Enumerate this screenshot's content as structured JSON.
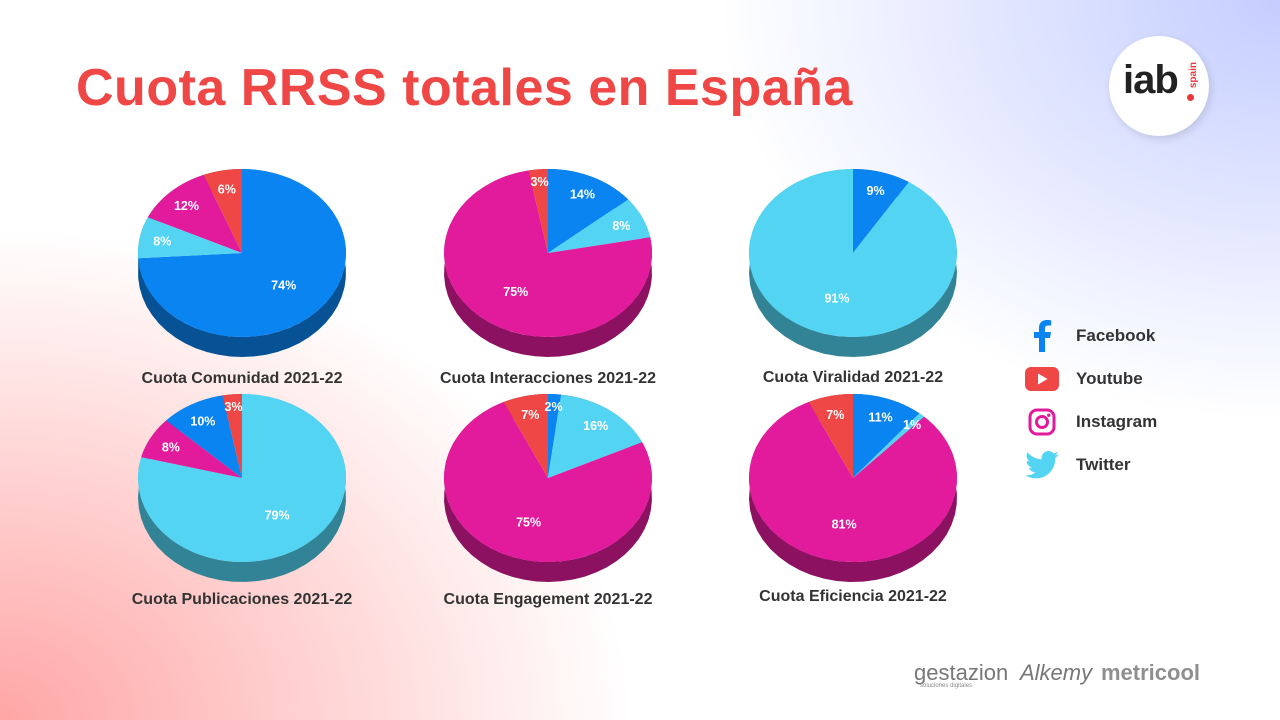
{
  "title": "Cuota RRSS totales en España",
  "logo": {
    "text": "iab",
    "sub": "spain"
  },
  "colors": {
    "facebook": "#0a84f0",
    "youtube": "#ef4646",
    "instagram": "#e11b9c",
    "twitter": "#53d4f2"
  },
  "legend": [
    {
      "name": "Facebook",
      "icon": "facebook-icon",
      "key": "facebook"
    },
    {
      "name": "Youtube",
      "icon": "youtube-icon",
      "key": "youtube"
    },
    {
      "name": "Instagram",
      "icon": "instagram-icon",
      "key": "instagram"
    },
    {
      "name": "Twitter",
      "icon": "twitter-icon",
      "key": "twitter"
    }
  ],
  "chart_data": [
    {
      "type": "pie",
      "title": "Cuota Comunidad 2021-22",
      "slices": [
        {
          "series": "facebook",
          "value": 74
        },
        {
          "series": "twitter",
          "value": 8
        },
        {
          "series": "instagram",
          "value": 12
        },
        {
          "series": "youtube",
          "value": 6
        }
      ],
      "labels": [
        "74%",
        "8%",
        "12%",
        "6%"
      ]
    },
    {
      "type": "pie",
      "title": "Cuota Interacciones 2021-22",
      "slices": [
        {
          "series": "facebook",
          "value": 14
        },
        {
          "series": "twitter",
          "value": 8
        },
        {
          "series": "instagram",
          "value": 75
        },
        {
          "series": "youtube",
          "value": 3
        }
      ],
      "labels": [
        "14%",
        "8%",
        "75%",
        "3%"
      ]
    },
    {
      "type": "pie",
      "title": "Cuota Viralidad 2021-22",
      "slices": [
        {
          "series": "facebook",
          "value": 9
        },
        {
          "series": "twitter",
          "value": 91
        }
      ],
      "labels": [
        "9%",
        "91%"
      ]
    },
    {
      "type": "pie",
      "title": "Cuota Publicaciones 2021-22",
      "slices": [
        {
          "series": "twitter",
          "value": 79
        },
        {
          "series": "instagram",
          "value": 8
        },
        {
          "series": "facebook",
          "value": 10
        },
        {
          "series": "youtube",
          "value": 3
        }
      ],
      "labels": [
        "79%",
        "8%",
        "10%",
        "3%"
      ]
    },
    {
      "type": "pie",
      "title": "Cuota Engagement 2021-22",
      "slices": [
        {
          "series": "facebook",
          "value": 2
        },
        {
          "series": "twitter",
          "value": 16
        },
        {
          "series": "instagram",
          "value": 75
        },
        {
          "series": "youtube",
          "value": 7
        }
      ],
      "labels": [
        "2%",
        "16%",
        "75%",
        "7%"
      ]
    },
    {
      "type": "pie",
      "title": "Cuota Eficiencia 2021-22",
      "slices": [
        {
          "series": "facebook",
          "value": 11
        },
        {
          "series": "twitter",
          "value": 1
        },
        {
          "series": "instagram",
          "value": 81
        },
        {
          "series": "youtube",
          "value": 7
        }
      ],
      "labels": [
        "11%",
        "1%",
        "81%",
        "7%"
      ]
    }
  ],
  "sponsors": {
    "gestazion": "gestazion",
    "gestazion_sub": "soluciones digitales",
    "alkemy": "Alkemy",
    "metricool": "metricool"
  }
}
